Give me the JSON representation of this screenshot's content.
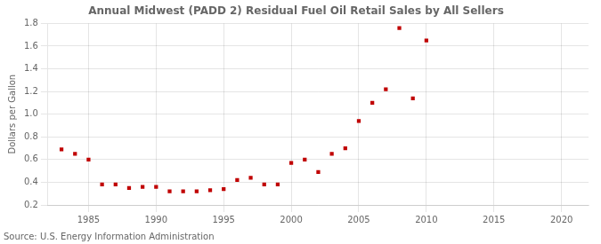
{
  "chart_data": {
    "type": "scatter",
    "title": "Annual Midwest (PADD 2) Residual Fuel Oil Retail Sales by All Sellers",
    "ylabel": "Dollars per Gallon",
    "source": "Source: U.S. Energy Information Administration",
    "color": "#c00000",
    "marker": "square",
    "grid": true,
    "xlim": [
      1982,
      2022
    ],
    "ylim": [
      0.2,
      1.8
    ],
    "xticks": [
      1985,
      1990,
      1995,
      2000,
      2005,
      2010,
      2015,
      2020
    ],
    "yticks": [
      0.2,
      0.4,
      0.6,
      0.8,
      {
        "value": 1.0,
        "label": "1.0"
      },
      1.2,
      1.4,
      1.6,
      1.8
    ],
    "x": [
      1983,
      1984,
      1985,
      1986,
      1987,
      1988,
      1989,
      1990,
      1991,
      1992,
      1993,
      1994,
      1995,
      1996,
      1997,
      1998,
      1999,
      2000,
      2001,
      2002,
      2003,
      2004,
      2005,
      2006,
      2007,
      2008,
      2009,
      2010
    ],
    "values": [
      0.69,
      0.65,
      0.6,
      0.38,
      0.38,
      0.35,
      0.36,
      0.36,
      0.32,
      0.32,
      0.32,
      0.33,
      0.34,
      0.42,
      0.44,
      0.38,
      0.38,
      0.57,
      0.6,
      0.49,
      0.65,
      0.7,
      0.94,
      1.1,
      1.22,
      1.76,
      1.14,
      1.65
    ]
  }
}
